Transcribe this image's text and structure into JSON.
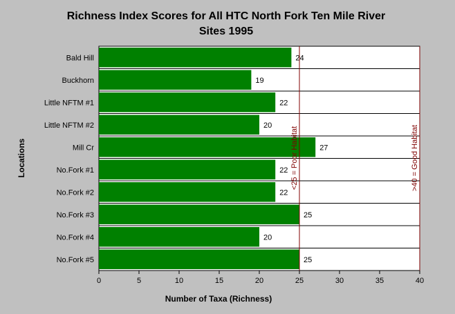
{
  "chart_data": {
    "type": "bar",
    "orientation": "horizontal",
    "title_line1": "Richness Index Scores for All HTC North Fork Ten Mile River",
    "title_line2": "Sites 1995",
    "xlabel": "Number of Taxa (Richness)",
    "ylabel": "Locations",
    "categories": [
      "Bald Hill",
      "Buckhorn",
      "Little NFTM #1",
      "Little NFTM #2",
      "Mill Cr",
      "No.Fork #1",
      "No.Fork #2",
      "No.Fork #3",
      "No.Fork #4",
      "No.Fork #5"
    ],
    "values": [
      24,
      19,
      22,
      20,
      27,
      22,
      22,
      25,
      20,
      25
    ],
    "xlim": [
      0,
      40
    ],
    "xticks": [
      0,
      5,
      10,
      15,
      20,
      25,
      30,
      35,
      40
    ],
    "grid": "horizontal row separators",
    "bar_color": "#008000",
    "reference_lines": [
      {
        "value": 25,
        "label": "<25 = Poor Habitat",
        "color": "#800000"
      },
      {
        "value": 40,
        "label": ">40 = Good Habitat",
        "color": "#800000"
      }
    ]
  }
}
